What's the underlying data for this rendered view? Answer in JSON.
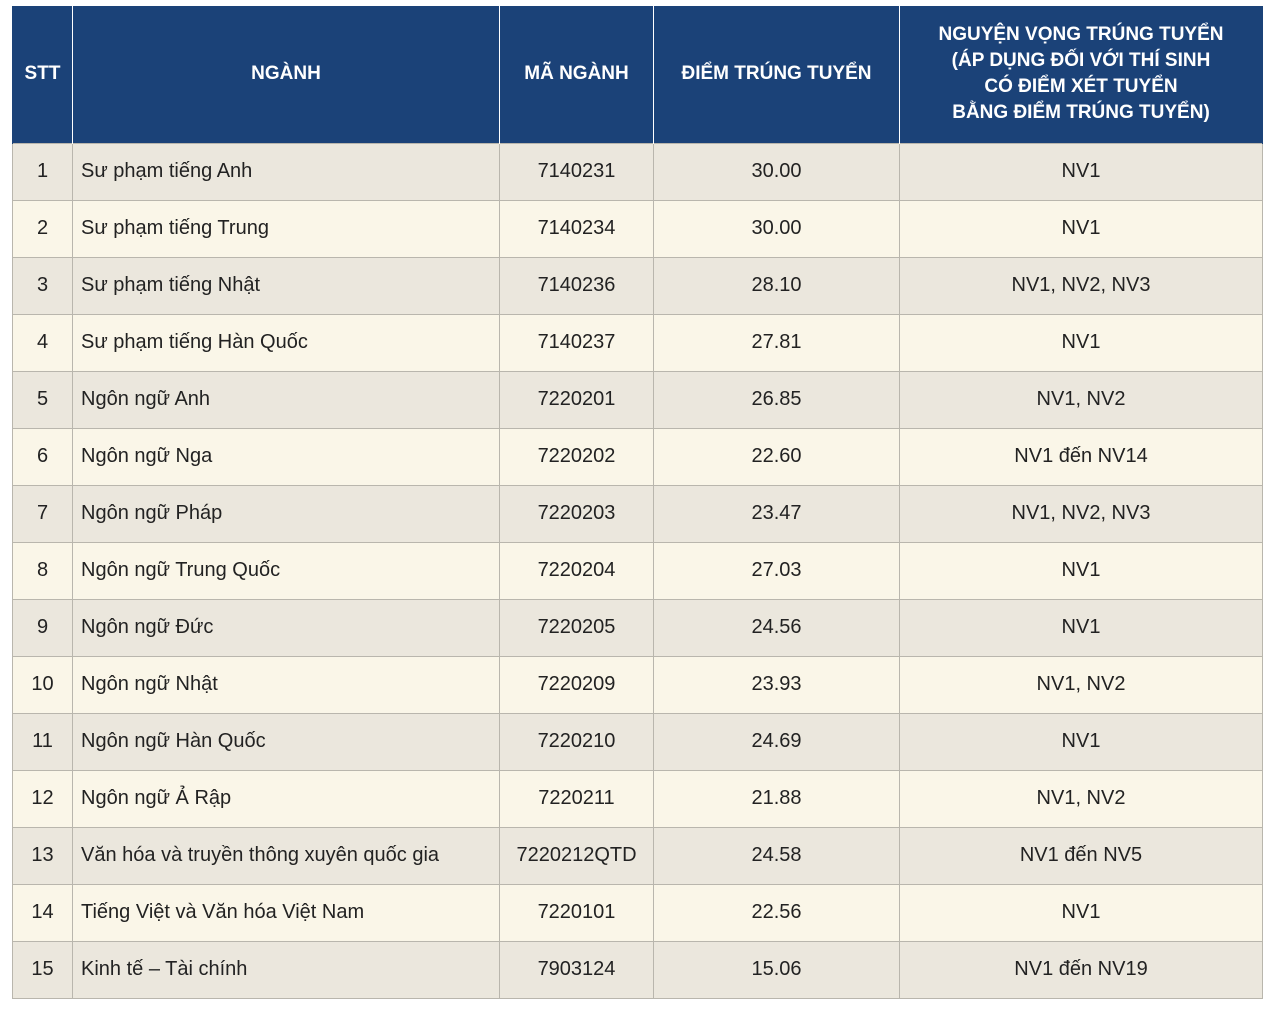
{
  "headers": [
    "STT",
    "NGÀNH",
    "MÃ NGÀNH",
    "ĐIỂM TRÚNG TUYỂN",
    [
      "NGUYỆN VỌNG TRÚNG TUYỂN",
      "(ÁP DỤNG ĐỐI VỚI THÍ SINH",
      "CÓ ĐIỂM XÉT TUYỂN",
      "BẰNG ĐIỂM TRÚNG TUYỂN)"
    ]
  ],
  "rows": [
    [
      "1",
      "Sư phạm tiếng Anh",
      "7140231",
      "30.00",
      "NV1"
    ],
    [
      "2",
      "Sư phạm tiếng Trung",
      "7140234",
      "30.00",
      "NV1"
    ],
    [
      "3",
      "Sư phạm tiếng Nhật",
      "7140236",
      "28.10",
      "NV1, NV2, NV3"
    ],
    [
      "4",
      "Sư phạm tiếng Hàn Quốc",
      "7140237",
      "27.81",
      "NV1"
    ],
    [
      "5",
      "Ngôn ngữ Anh",
      "7220201",
      "26.85",
      "NV1, NV2"
    ],
    [
      "6",
      "Ngôn ngữ Nga",
      "7220202",
      "22.60",
      "NV1 đến NV14"
    ],
    [
      "7",
      "Ngôn ngữ Pháp",
      "7220203",
      "23.47",
      "NV1, NV2, NV3"
    ],
    [
      "8",
      "Ngôn ngữ Trung Quốc",
      "7220204",
      "27.03",
      "NV1"
    ],
    [
      "9",
      "Ngôn ngữ Đức",
      "7220205",
      "24.56",
      "NV1"
    ],
    [
      "10",
      "Ngôn ngữ Nhật",
      "7220209",
      "23.93",
      "NV1, NV2"
    ],
    [
      "11",
      "Ngôn ngữ Hàn Quốc",
      "7220210",
      "24.69",
      "NV1"
    ],
    [
      "12",
      "Ngôn ngữ Ả Rập",
      "7220211",
      "21.88",
      "NV1, NV2"
    ],
    [
      "13",
      "Văn hóa và truyền thông xuyên quốc gia",
      "7220212QTD",
      "24.58",
      "NV1 đến NV5"
    ],
    [
      "14",
      "Tiếng Việt và Văn hóa Việt Nam",
      "7220101",
      "22.56",
      "NV1"
    ],
    [
      "15",
      "Kinh tế – Tài chính",
      "7903124",
      "15.06",
      "NV1 đến NV19"
    ]
  ]
}
